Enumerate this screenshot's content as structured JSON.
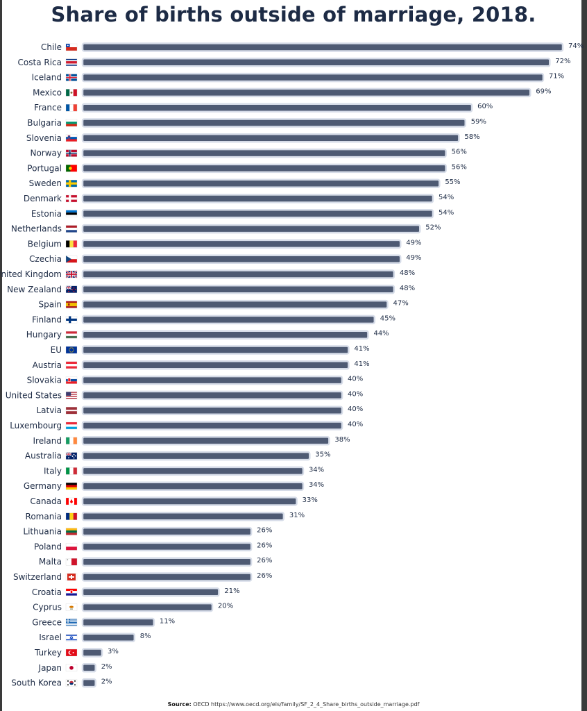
{
  "title": "Share of births outside of marriage, 2018.",
  "source_label": "Source:",
  "source_text": "OECD https://www.oecd.org/els/family/SF_2_4_Share_births_outside_marriage.pdf",
  "colors": {
    "bar": "#4e5a73",
    "bar_outline": "#d6dce8",
    "text": "#1d2b45"
  },
  "chart_data": {
    "type": "bar",
    "orientation": "horizontal",
    "title": "Share of births outside of marriage, 2018.",
    "value_suffix": "%",
    "xlim": [
      0,
      74
    ],
    "categories": [
      "Chile",
      "Costa Rica",
      "Iceland",
      "Mexico",
      "France",
      "Bulgaria",
      "Slovenia",
      "Norway",
      "Portugal",
      "Sweden",
      "Denmark",
      "Estonia",
      "Netherlands",
      "Belgium",
      "Czechia",
      "United Kingdom",
      "New Zealand",
      "Spain",
      "Finland",
      "Hungary",
      "EU",
      "Austria",
      "Slovakia",
      "United States",
      "Latvia",
      "Luxembourg",
      "Ireland",
      "Australia",
      "Italy",
      "Germany",
      "Canada",
      "Romania",
      "Lithuania",
      "Poland",
      "Malta",
      "Switzerland",
      "Croatia",
      "Cyprus",
      "Greece",
      "Israel",
      "Turkey",
      "Japan",
      "South Korea"
    ],
    "values": [
      74,
      72,
      71,
      69,
      60,
      59,
      58,
      56,
      56,
      55,
      54,
      54,
      52,
      49,
      49,
      48,
      48,
      47,
      45,
      44,
      41,
      41,
      40,
      40,
      40,
      40,
      38,
      35,
      34,
      34,
      33,
      31,
      26,
      26,
      26,
      26,
      21,
      20,
      11,
      8,
      3,
      2,
      2
    ],
    "flags": [
      "chile-flag-icon",
      "costa-rica-flag-icon",
      "iceland-flag-icon",
      "mexico-flag-icon",
      "france-flag-icon",
      "bulgaria-flag-icon",
      "slovenia-flag-icon",
      "norway-flag-icon",
      "portugal-flag-icon",
      "sweden-flag-icon",
      "denmark-flag-icon",
      "estonia-flag-icon",
      "netherlands-flag-icon",
      "belgium-flag-icon",
      "czechia-flag-icon",
      "united-kingdom-flag-icon",
      "new-zealand-flag-icon",
      "spain-flag-icon",
      "finland-flag-icon",
      "hungary-flag-icon",
      "eu-flag-icon",
      "austria-flag-icon",
      "slovakia-flag-icon",
      "united-states-flag-icon",
      "latvia-flag-icon",
      "luxembourg-flag-icon",
      "ireland-flag-icon",
      "australia-flag-icon",
      "italy-flag-icon",
      "germany-flag-icon",
      "canada-flag-icon",
      "romania-flag-icon",
      "lithuania-flag-icon",
      "poland-flag-icon",
      "malta-flag-icon",
      "switzerland-flag-icon",
      "croatia-flag-icon",
      "cyprus-flag-icon",
      "greece-flag-icon",
      "israel-flag-icon",
      "turkey-flag-icon",
      "japan-flag-icon",
      "south-korea-flag-icon"
    ],
    "grid": false,
    "legend": "none"
  }
}
